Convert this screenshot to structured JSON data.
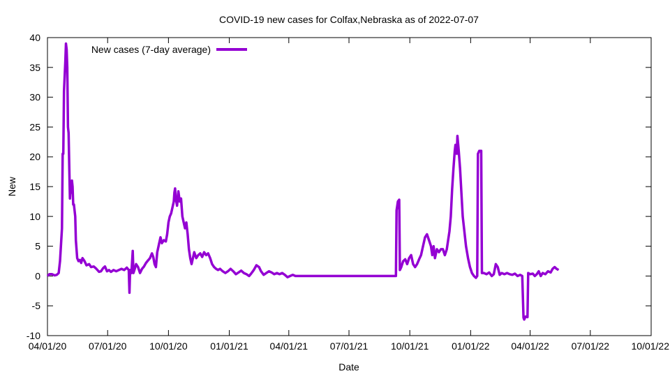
{
  "chart_data": {
    "type": "line",
    "title": "COVID-19 new cases for Colfax,Nebraska as of 2022-07-07",
    "xlabel": "Date",
    "ylabel": "New",
    "xlim": [
      "2020-04-01",
      "2022-10-01"
    ],
    "ylim": [
      -10,
      40
    ],
    "xticks": [
      "2020-04-01",
      "2020-07-01",
      "2020-10-01",
      "2021-01-01",
      "2021-04-01",
      "2021-07-01",
      "2021-10-01",
      "2022-01-01",
      "2022-04-01",
      "2022-07-01",
      "2022-10-01"
    ],
    "xtick_labels": [
      "04/01/20",
      "07/01/20",
      "10/01/20",
      "01/01/21",
      "04/01/21",
      "07/01/21",
      "10/01/21",
      "01/01/22",
      "04/01/22",
      "07/01/22",
      "10/01/22"
    ],
    "yticks": [
      -10,
      -5,
      0,
      5,
      10,
      15,
      20,
      25,
      30,
      35,
      40
    ],
    "ytick_labels": [
      "-10",
      "-5",
      "0",
      "5",
      "10",
      "15",
      "20",
      "25",
      "30",
      "35",
      "40"
    ],
    "grid": false,
    "legend": {
      "position": "top-left",
      "entries": [
        "New cases (7-day average)"
      ]
    },
    "colors": {
      "series": "#9400d3",
      "axis": "#000000"
    },
    "series": [
      {
        "name": "New cases (7-day average)",
        "points": [
          [
            "2020-04-01",
            0.0
          ],
          [
            "2020-04-04",
            0.3
          ],
          [
            "2020-04-08",
            0.3
          ],
          [
            "2020-04-12",
            0.1
          ],
          [
            "2020-04-15",
            0.2
          ],
          [
            "2020-04-18",
            0.5
          ],
          [
            "2020-04-20",
            2.5
          ],
          [
            "2020-04-23",
            8.0
          ],
          [
            "2020-04-24",
            20.5
          ],
          [
            "2020-04-25",
            20.5
          ],
          [
            "2020-04-26",
            31.0
          ],
          [
            "2020-04-28",
            36.0
          ],
          [
            "2020-04-29",
            39.0
          ],
          [
            "2020-04-30",
            38.0
          ],
          [
            "2020-05-01",
            35.0
          ],
          [
            "2020-05-02",
            25.0
          ],
          [
            "2020-05-03",
            24.0
          ],
          [
            "2020-05-04",
            18.0
          ],
          [
            "2020-05-05",
            13.0
          ],
          [
            "2020-05-06",
            15.0
          ],
          [
            "2020-05-07",
            14.0
          ],
          [
            "2020-05-08",
            16.0
          ],
          [
            "2020-05-09",
            15.0
          ],
          [
            "2020-05-10",
            12.0
          ],
          [
            "2020-05-11",
            12.0
          ],
          [
            "2020-05-13",
            10.0
          ],
          [
            "2020-05-14",
            6.0
          ],
          [
            "2020-05-16",
            3.0
          ],
          [
            "2020-05-18",
            2.5
          ],
          [
            "2020-05-20",
            2.7
          ],
          [
            "2020-05-22",
            2.2
          ],
          [
            "2020-05-24",
            3.0
          ],
          [
            "2020-05-27",
            2.5
          ],
          [
            "2020-05-30",
            1.8
          ],
          [
            "2020-06-03",
            2.0
          ],
          [
            "2020-06-06",
            1.5
          ],
          [
            "2020-06-10",
            1.6
          ],
          [
            "2020-06-14",
            1.2
          ],
          [
            "2020-06-18",
            0.7
          ],
          [
            "2020-06-21",
            0.8
          ],
          [
            "2020-06-24",
            1.3
          ],
          [
            "2020-06-27",
            1.6
          ],
          [
            "2020-06-30",
            0.8
          ],
          [
            "2020-07-03",
            1.0
          ],
          [
            "2020-07-06",
            0.7
          ],
          [
            "2020-07-10",
            1.0
          ],
          [
            "2020-07-14",
            0.8
          ],
          [
            "2020-07-18",
            1.0
          ],
          [
            "2020-07-22",
            1.2
          ],
          [
            "2020-07-26",
            1.0
          ],
          [
            "2020-07-30",
            1.4
          ],
          [
            "2020-08-02",
            1.0
          ],
          [
            "2020-08-03",
            -2.8
          ],
          [
            "2020-08-04",
            1.0
          ],
          [
            "2020-08-06",
            0.5
          ],
          [
            "2020-08-08",
            4.2
          ],
          [
            "2020-08-09",
            0.5
          ],
          [
            "2020-08-11",
            1.2
          ],
          [
            "2020-08-13",
            2.0
          ],
          [
            "2020-08-16",
            1.5
          ],
          [
            "2020-08-19",
            0.5
          ],
          [
            "2020-08-22",
            1.2
          ],
          [
            "2020-08-25",
            1.6
          ],
          [
            "2020-08-28",
            2.2
          ],
          [
            "2020-08-31",
            2.6
          ],
          [
            "2020-09-03",
            3.0
          ],
          [
            "2020-09-06",
            3.8
          ],
          [
            "2020-09-08",
            3.2
          ],
          [
            "2020-09-10",
            2.0
          ],
          [
            "2020-09-12",
            1.5
          ],
          [
            "2020-09-14",
            4.0
          ],
          [
            "2020-09-17",
            5.5
          ],
          [
            "2020-09-19",
            6.5
          ],
          [
            "2020-09-21",
            5.5
          ],
          [
            "2020-09-24",
            6.0
          ],
          [
            "2020-09-27",
            5.8
          ],
          [
            "2020-09-29",
            7.0
          ],
          [
            "2020-10-01",
            9.0
          ],
          [
            "2020-10-03",
            10.0
          ],
          [
            "2020-10-05",
            10.5
          ],
          [
            "2020-10-07",
            11.5
          ],
          [
            "2020-10-09",
            12.5
          ],
          [
            "2020-10-10",
            14.0
          ],
          [
            "2020-10-11",
            14.7
          ],
          [
            "2020-10-12",
            13.0
          ],
          [
            "2020-10-14",
            11.8
          ],
          [
            "2020-10-16",
            14.2
          ],
          [
            "2020-10-18",
            12.5
          ],
          [
            "2020-10-20",
            13.0
          ],
          [
            "2020-10-22",
            10.0
          ],
          [
            "2020-10-24",
            9.0
          ],
          [
            "2020-10-26",
            8.0
          ],
          [
            "2020-10-28",
            9.0
          ],
          [
            "2020-10-30",
            7.0
          ],
          [
            "2020-11-01",
            4.5
          ],
          [
            "2020-11-03",
            3.0
          ],
          [
            "2020-11-05",
            2.0
          ],
          [
            "2020-11-07",
            3.0
          ],
          [
            "2020-11-09",
            4.0
          ],
          [
            "2020-11-12",
            3.0
          ],
          [
            "2020-11-15",
            3.5
          ],
          [
            "2020-11-18",
            3.8
          ],
          [
            "2020-11-21",
            3.2
          ],
          [
            "2020-11-24",
            4.0
          ],
          [
            "2020-11-27",
            3.5
          ],
          [
            "2020-11-30",
            3.8
          ],
          [
            "2020-12-03",
            3.0
          ],
          [
            "2020-12-06",
            2.0
          ],
          [
            "2020-12-09",
            1.5
          ],
          [
            "2020-12-12",
            1.2
          ],
          [
            "2020-12-15",
            1.0
          ],
          [
            "2020-12-18",
            1.2
          ],
          [
            "2020-12-22",
            0.8
          ],
          [
            "2020-12-26",
            0.5
          ],
          [
            "2020-12-30",
            0.8
          ],
          [
            "2021-01-03",
            1.2
          ],
          [
            "2021-01-07",
            0.8
          ],
          [
            "2021-01-11",
            0.3
          ],
          [
            "2021-01-15",
            0.6
          ],
          [
            "2021-01-19",
            0.9
          ],
          [
            "2021-01-23",
            0.5
          ],
          [
            "2021-01-27",
            0.3
          ],
          [
            "2021-01-31",
            0.0
          ],
          [
            "2021-02-03",
            0.4
          ],
          [
            "2021-02-07",
            1.0
          ],
          [
            "2021-02-11",
            1.8
          ],
          [
            "2021-02-15",
            1.5
          ],
          [
            "2021-02-18",
            0.8
          ],
          [
            "2021-02-22",
            0.2
          ],
          [
            "2021-02-26",
            0.5
          ],
          [
            "2021-03-02",
            0.8
          ],
          [
            "2021-03-06",
            0.6
          ],
          [
            "2021-03-10",
            0.3
          ],
          [
            "2021-03-14",
            0.5
          ],
          [
            "2021-03-18",
            0.3
          ],
          [
            "2021-03-22",
            0.5
          ],
          [
            "2021-03-26",
            0.2
          ],
          [
            "2021-03-30",
            -0.2
          ],
          [
            "2021-04-03",
            0.0
          ],
          [
            "2021-04-07",
            0.2
          ],
          [
            "2021-04-11",
            0.0
          ],
          [
            "2021-05-01",
            0.0
          ],
          [
            "2021-06-01",
            0.0
          ],
          [
            "2021-07-01",
            0.0
          ],
          [
            "2021-08-01",
            0.0
          ],
          [
            "2021-09-01",
            0.0
          ],
          [
            "2021-09-10",
            0.0
          ],
          [
            "2021-09-11",
            11.0
          ],
          [
            "2021-09-13",
            12.5
          ],
          [
            "2021-09-15",
            12.8
          ],
          [
            "2021-09-16",
            1.0
          ],
          [
            "2021-09-18",
            1.5
          ],
          [
            "2021-09-21",
            2.5
          ],
          [
            "2021-09-24",
            2.8
          ],
          [
            "2021-09-27",
            2.0
          ],
          [
            "2021-09-30",
            3.0
          ],
          [
            "2021-10-03",
            3.5
          ],
          [
            "2021-10-06",
            2.0
          ],
          [
            "2021-10-09",
            1.5
          ],
          [
            "2021-10-12",
            2.0
          ],
          [
            "2021-10-15",
            2.8
          ],
          [
            "2021-10-18",
            3.5
          ],
          [
            "2021-10-21",
            5.0
          ],
          [
            "2021-10-24",
            6.5
          ],
          [
            "2021-10-27",
            7.0
          ],
          [
            "2021-10-30",
            6.0
          ],
          [
            "2021-11-02",
            5.0
          ],
          [
            "2021-11-04",
            3.5
          ],
          [
            "2021-11-06",
            5.0
          ],
          [
            "2021-11-08",
            3.0
          ],
          [
            "2021-11-11",
            4.5
          ],
          [
            "2021-11-14",
            4.0
          ],
          [
            "2021-11-17",
            4.5
          ],
          [
            "2021-11-20",
            4.5
          ],
          [
            "2021-11-23",
            3.5
          ],
          [
            "2021-11-26",
            4.5
          ],
          [
            "2021-11-28",
            6.0
          ],
          [
            "2021-11-30",
            7.5
          ],
          [
            "2021-12-02",
            10.0
          ],
          [
            "2021-12-04",
            14.5
          ],
          [
            "2021-12-06",
            18.0
          ],
          [
            "2021-12-08",
            21.0
          ],
          [
            "2021-12-09",
            22.0
          ],
          [
            "2021-12-11",
            20.5
          ],
          [
            "2021-12-12",
            23.5
          ],
          [
            "2021-12-14",
            21.0
          ],
          [
            "2021-12-16",
            18.0
          ],
          [
            "2021-12-18",
            14.0
          ],
          [
            "2021-12-20",
            10.0
          ],
          [
            "2021-12-22",
            8.0
          ],
          [
            "2021-12-25",
            5.0
          ],
          [
            "2021-12-28",
            3.0
          ],
          [
            "2021-12-31",
            1.5
          ],
          [
            "2022-01-03",
            0.5
          ],
          [
            "2022-01-06",
            0.0
          ],
          [
            "2022-01-09",
            -0.3
          ],
          [
            "2022-01-11",
            0.0
          ],
          [
            "2022-01-12",
            20.5
          ],
          [
            "2022-01-14",
            21.0
          ],
          [
            "2022-01-17",
            21.0
          ],
          [
            "2022-01-18",
            0.5
          ],
          [
            "2022-01-21",
            0.5
          ],
          [
            "2022-01-25",
            0.3
          ],
          [
            "2022-01-29",
            0.6
          ],
          [
            "2022-02-02",
            0.0
          ],
          [
            "2022-02-05",
            0.3
          ],
          [
            "2022-02-08",
            2.0
          ],
          [
            "2022-02-11",
            1.5
          ],
          [
            "2022-02-14",
            0.2
          ],
          [
            "2022-02-17",
            0.5
          ],
          [
            "2022-02-21",
            0.3
          ],
          [
            "2022-02-25",
            0.5
          ],
          [
            "2022-03-01",
            0.3
          ],
          [
            "2022-03-05",
            0.2
          ],
          [
            "2022-03-09",
            0.4
          ],
          [
            "2022-03-13",
            0.0
          ],
          [
            "2022-03-17",
            0.2
          ],
          [
            "2022-03-20",
            0.0
          ],
          [
            "2022-03-22",
            -7.0
          ],
          [
            "2022-03-23",
            -7.3
          ],
          [
            "2022-03-25",
            -6.8
          ],
          [
            "2022-03-28",
            -6.9
          ],
          [
            "2022-03-29",
            0.5
          ],
          [
            "2022-04-01",
            0.3
          ],
          [
            "2022-04-05",
            0.4
          ],
          [
            "2022-04-08",
            0.0
          ],
          [
            "2022-04-11",
            0.3
          ],
          [
            "2022-04-14",
            0.8
          ],
          [
            "2022-04-17",
            0.0
          ],
          [
            "2022-04-20",
            0.5
          ],
          [
            "2022-04-24",
            0.3
          ],
          [
            "2022-04-28",
            0.8
          ],
          [
            "2022-05-02",
            0.6
          ],
          [
            "2022-05-05",
            1.2
          ],
          [
            "2022-05-08",
            1.5
          ],
          [
            "2022-05-11",
            1.2
          ],
          [
            "2022-05-14",
            1.0
          ]
        ]
      }
    ]
  }
}
